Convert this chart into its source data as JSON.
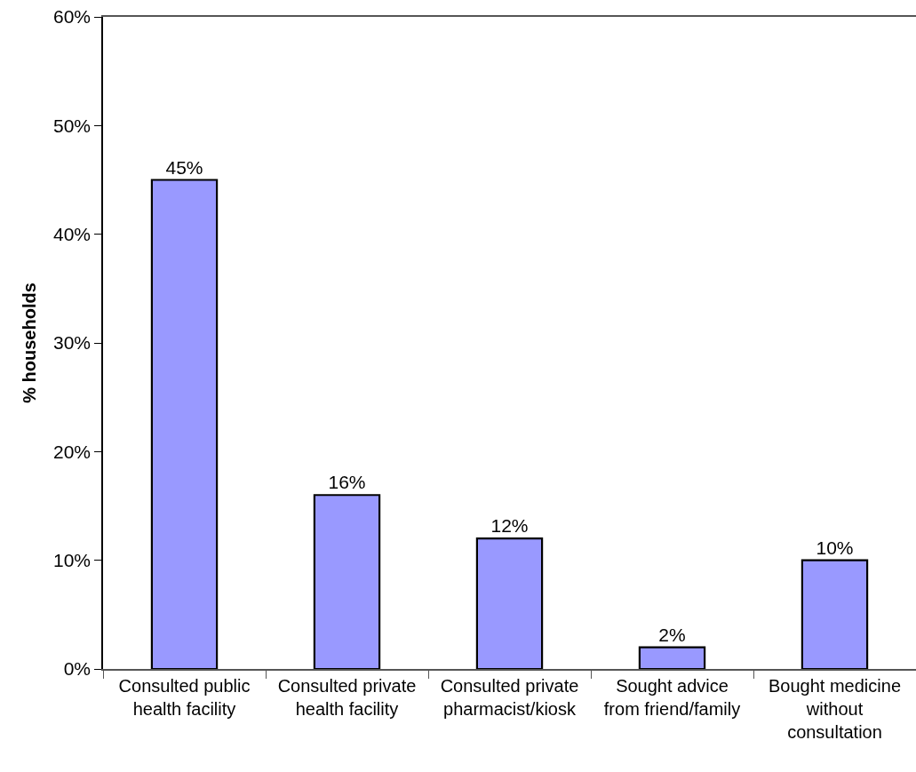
{
  "chart_data": {
    "type": "bar",
    "categories": [
      "Consulted public health facility",
      "Consulted private health facility",
      "Consulted private pharmacist/kiosk",
      "Sought advice from friend/family",
      "Bought medicine without consultation"
    ],
    "values": [
      45,
      16,
      12,
      2,
      10
    ],
    "value_labels": [
      "45%",
      "16%",
      "12%",
      "2%",
      "10%"
    ],
    "color": "#9999ff",
    "ylabel": "% households",
    "ylim": [
      0,
      60
    ],
    "yticks": [
      {
        "value": 0,
        "label": "0%"
      },
      {
        "value": 10,
        "label": "10%"
      },
      {
        "value": 20,
        "label": "20%"
      },
      {
        "value": 30,
        "label": "30%"
      },
      {
        "value": 40,
        "label": "40%"
      },
      {
        "value": 50,
        "label": "50%"
      },
      {
        "value": 60,
        "label": "60%"
      }
    ]
  }
}
